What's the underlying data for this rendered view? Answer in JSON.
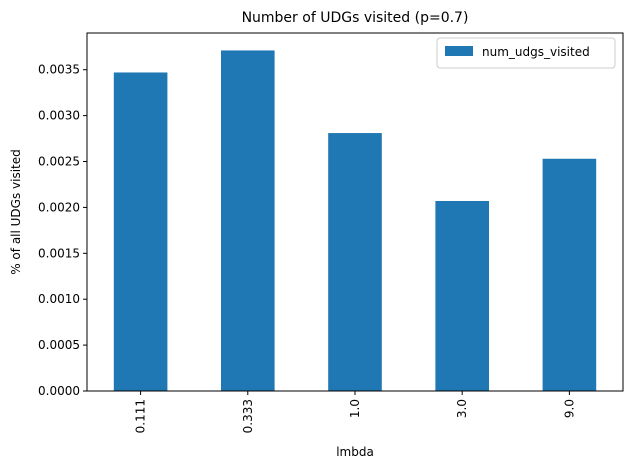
{
  "chart_data": {
    "type": "bar",
    "title": "Number of UDGs visited (p=0.7)",
    "xlabel": "lmbda",
    "ylabel": "% of all UDGs visited",
    "categories": [
      "0.111",
      "0.333",
      "1.0",
      "3.0",
      "9.0"
    ],
    "series": [
      {
        "name": "num_udgs_visited",
        "values": [
          0.00347,
          0.00371,
          0.00281,
          0.00207,
          0.00253
        ],
        "color": "#1f77b4"
      }
    ],
    "ylim": [
      0,
      0.0039
    ],
    "yticks": [
      "0.0000",
      "0.0005",
      "0.0010",
      "0.0015",
      "0.0020",
      "0.0025",
      "0.0030",
      "0.0035"
    ],
    "grid": false,
    "legend_position": "top-right"
  }
}
